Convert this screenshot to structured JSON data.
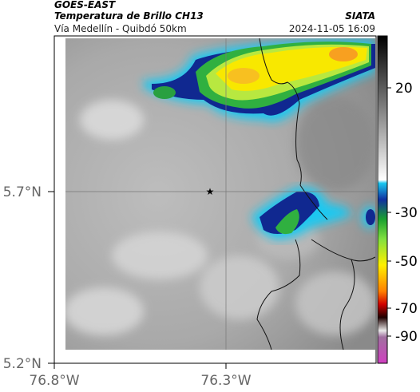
{
  "header": {
    "source": "GOES-EAST",
    "product": "Temperatura de Brillo CH13",
    "agency": "SIATA",
    "route": "Vía Medellín - Quibdó 50km",
    "timestamp": "2024-11-05 16:09"
  },
  "map": {
    "lat_labels": [
      "5.7°N",
      "5.2°N"
    ],
    "lon_labels": [
      "76.8°W",
      "76.3°W"
    ]
  },
  "colorbar": {
    "ticks": [
      20,
      -30,
      -50,
      -70,
      -90
    ]
  }
}
